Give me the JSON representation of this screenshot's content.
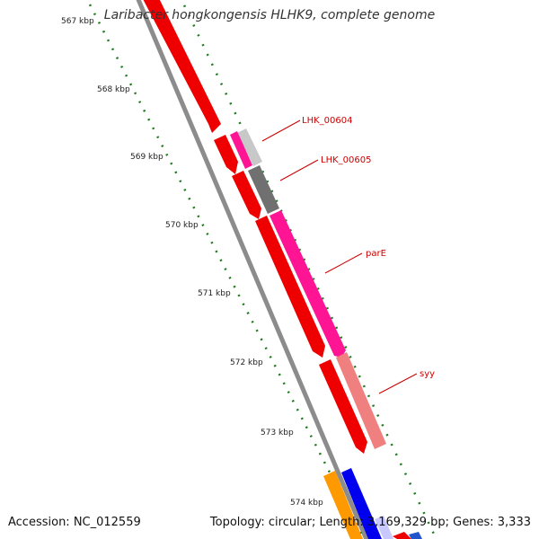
{
  "title": "Laribacter hongkongensis HLHK9, complete genome",
  "accession": "Accession: NC_012559",
  "summary": "Topology: circular; Length: 3,169,329 bp; Genes: 3,333",
  "ticks": [
    "567 kbp",
    "568 kbp",
    "569 kbp",
    "570 kbp",
    "571 kbp",
    "572 kbp",
    "573 kbp",
    "574 kbp"
  ],
  "gene_labels": [
    "LHK_00604",
    "LHK_00605",
    "parE",
    "syy"
  ],
  "colors": {
    "backbone": "#8c8c8c",
    "tick_dots": "#1f7a1f",
    "cds_red": "#ee0000",
    "pink": "#ff1493",
    "salmon": "#f08080",
    "gray": "#707070",
    "light_gray": "#c8c8c8",
    "orange": "#ff9900",
    "blue": "#0000ee",
    "label_red": "#cc0000"
  }
}
